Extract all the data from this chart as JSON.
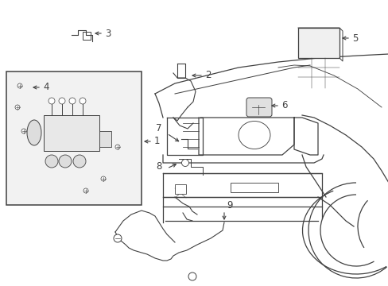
{
  "bg_color": "#ffffff",
  "line_color": "#404040",
  "fig_width": 4.89,
  "fig_height": 3.6,
  "dpi": 100,
  "lw": 0.9,
  "font_size": 8.5
}
